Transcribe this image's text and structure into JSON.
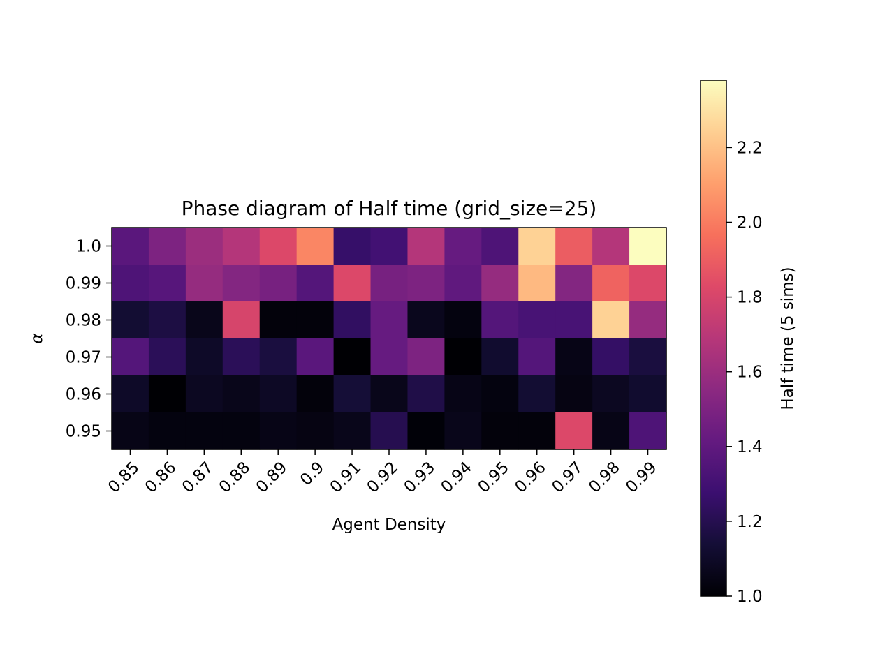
{
  "chart_data": {
    "type": "heatmap",
    "title": "Phase diagram of Half time (grid_size=25)",
    "xlabel": "Agent Density",
    "ylabel": "α",
    "x_categories": [
      "0.85",
      "0.86",
      "0.87",
      "0.88",
      "0.89",
      "0.9",
      "0.91",
      "0.92",
      "0.93",
      "0.94",
      "0.95",
      "0.96",
      "0.97",
      "0.98",
      "0.99"
    ],
    "y_categories": [
      "1.0",
      "0.99",
      "0.98",
      "0.97",
      "0.96",
      "0.95"
    ],
    "values": [
      [
        1.38,
        1.5,
        1.6,
        1.68,
        1.82,
        2.03,
        1.26,
        1.3,
        1.68,
        1.42,
        1.34,
        2.25,
        1.9,
        1.68,
        2.38
      ],
      [
        1.34,
        1.37,
        1.58,
        1.52,
        1.48,
        1.36,
        1.82,
        1.48,
        1.5,
        1.4,
        1.58,
        2.18,
        1.52,
        1.92,
        1.82
      ],
      [
        1.13,
        1.17,
        1.06,
        1.8,
        1.02,
        1.02,
        1.24,
        1.42,
        1.07,
        1.03,
        1.36,
        1.32,
        1.32,
        2.25,
        1.58
      ],
      [
        1.36,
        1.22,
        1.1,
        1.22,
        1.16,
        1.38,
        1.0,
        1.42,
        1.5,
        1.0,
        1.12,
        1.36,
        1.05,
        1.25,
        1.16
      ],
      [
        1.1,
        1.0,
        1.08,
        1.06,
        1.09,
        1.02,
        1.14,
        1.06,
        1.18,
        1.05,
        1.03,
        1.13,
        1.04,
        1.08,
        1.12
      ],
      [
        1.05,
        1.03,
        1.03,
        1.03,
        1.05,
        1.04,
        1.06,
        1.2,
        1.01,
        1.06,
        1.02,
        1.02,
        1.82,
        1.05,
        1.34
      ]
    ],
    "colormap": "magma",
    "colorbar": {
      "label": "Half time (5 sims)",
      "range": [
        1.0,
        2.38
      ],
      "ticks": [
        "1.0",
        "1.2",
        "1.4",
        "1.6",
        "1.8",
        "2.0",
        "2.2"
      ]
    }
  }
}
